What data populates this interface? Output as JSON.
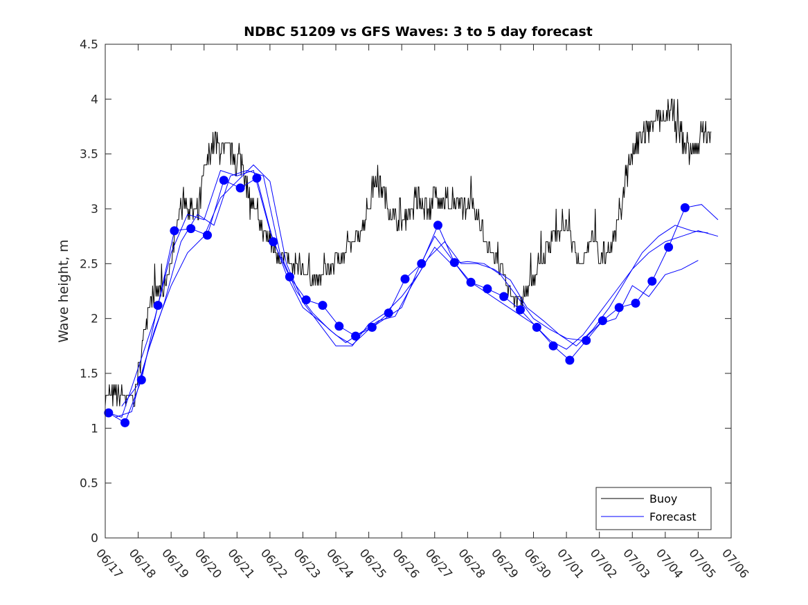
{
  "chart_data": {
    "type": "line",
    "title": "NDBC 51209 vs GFS Waves: 3 to 5 day forecast",
    "xlabel": "",
    "ylabel": "Wave height, m",
    "xlim": [
      "06/17",
      "07/06"
    ],
    "ylim": [
      0,
      4.5
    ],
    "x_tick_labels": [
      "06/17",
      "06/18",
      "06/19",
      "06/20",
      "06/21",
      "06/22",
      "06/23",
      "06/24",
      "06/25",
      "06/26",
      "06/27",
      "06/28",
      "06/29",
      "06/30",
      "07/01",
      "07/02",
      "07/03",
      "07/04",
      "07/05",
      "07/06"
    ],
    "y_tick_labels": [
      "0",
      "0.5",
      "1",
      "1.5",
      "2",
      "2.5",
      "3",
      "3.5",
      "4",
      "4.5"
    ],
    "grid": false,
    "legend": {
      "position": "bottom-right",
      "entries": [
        "Buoy",
        "Forecast"
      ]
    },
    "colors": {
      "buoy": "#000000",
      "forecast": "#0000ff",
      "marker": "#0000ff"
    },
    "buoy": {
      "name": "Buoy",
      "x_days": [
        0,
        0.5,
        0.7,
        0.9,
        1.0,
        1.2,
        1.4,
        1.6,
        1.8,
        2.0,
        2.2,
        2.4,
        2.6,
        2.8,
        3.0,
        3.2,
        3.4,
        3.6,
        3.8,
        4.0,
        4.2,
        4.4,
        4.6,
        4.8,
        5.0,
        5.2,
        5.4,
        5.6,
        5.8,
        6.0,
        6.2,
        6.4,
        6.6,
        6.8,
        7.0,
        7.3,
        7.6,
        7.9,
        8.2,
        8.5,
        8.8,
        9.0,
        9.2,
        9.4,
        9.6,
        9.8,
        10.0,
        10.2,
        10.4,
        10.6,
        10.8,
        11.0,
        11.2,
        11.4,
        11.6,
        11.8,
        12.0,
        12.2,
        12.4,
        12.6,
        12.8,
        13.0,
        13.2,
        13.4,
        13.6,
        13.8,
        14.0,
        14.2,
        14.4,
        14.6,
        14.8,
        15.0,
        15.2,
        15.4,
        15.6,
        15.8,
        16.0,
        16.2,
        16.4,
        16.6,
        16.8,
        17.0,
        17.2,
        17.4,
        17.6,
        17.8,
        18.0,
        18.2,
        18.4
      ],
      "values": [
        1.3,
        1.3,
        1.25,
        1.3,
        1.5,
        1.9,
        2.2,
        2.25,
        2.3,
        2.5,
        2.95,
        3.1,
        3.0,
        2.9,
        3.3,
        3.55,
        3.6,
        3.5,
        3.5,
        3.45,
        3.4,
        3.1,
        2.95,
        2.8,
        2.7,
        2.6,
        2.55,
        2.5,
        2.5,
        2.45,
        2.4,
        2.35,
        2.4,
        2.45,
        2.55,
        2.6,
        2.75,
        2.9,
        3.3,
        3.1,
        2.9,
        2.85,
        2.95,
        3.05,
        3.1,
        3.0,
        3.1,
        3.05,
        3.1,
        3.05,
        3.0,
        3.1,
        2.95,
        2.85,
        2.7,
        2.55,
        2.45,
        2.3,
        2.2,
        2.15,
        2.25,
        2.4,
        2.5,
        2.6,
        2.8,
        2.75,
        2.85,
        2.7,
        2.5,
        2.6,
        2.75,
        2.55,
        2.6,
        2.7,
        2.9,
        3.3,
        3.5,
        3.6,
        3.7,
        3.75,
        3.8,
        3.85,
        3.9,
        3.7,
        3.6,
        3.5,
        3.6,
        3.7,
        3.65
      ]
    },
    "forecast_markers": {
      "name": "Forecast",
      "x_days": [
        0.1,
        0.6,
        1.1,
        1.6,
        2.1,
        2.6,
        3.1,
        3.6,
        4.1,
        4.6,
        5.1,
        5.6,
        6.1,
        6.6,
        7.1,
        7.6,
        8.1,
        8.6,
        9.1,
        9.6,
        10.1,
        10.6,
        11.1,
        11.6,
        12.1,
        12.6,
        13.1,
        13.6,
        14.1,
        14.6,
        15.1,
        15.6,
        16.1,
        16.6,
        17.1,
        17.6
      ],
      "values": [
        1.14,
        1.05,
        1.44,
        2.12,
        2.8,
        2.82,
        2.76,
        3.26,
        3.19,
        3.28,
        2.7,
        2.38,
        2.17,
        2.12,
        1.93,
        1.84,
        1.92,
        2.05,
        2.36,
        2.5,
        2.85,
        2.51,
        2.33,
        2.27,
        2.2,
        2.08,
        1.92,
        1.75,
        1.62,
        1.8,
        1.98,
        2.1,
        2.14,
        2.34,
        2.65,
        3.01
      ]
    },
    "forecast_series": [
      {
        "x_days": [
          0.1,
          0.6,
          1.1,
          1.6,
          2.1,
          2.6,
          3.1,
          3.6,
          4.1,
          4.6,
          5.1,
          5.6,
          6.1,
          6.6,
          7.1,
          7.6,
          8.1,
          8.6,
          9.1,
          9.6,
          10.1,
          10.6,
          11.1,
          11.6,
          12.1,
          12.6,
          13.1,
          13.6,
          14.1,
          14.6,
          15.1,
          15.6,
          16.1,
          16.6,
          17.1,
          17.6,
          18.1,
          18.6
        ],
        "values": [
          1.14,
          1.05,
          1.44,
          2.12,
          2.8,
          2.82,
          2.76,
          3.26,
          3.19,
          3.28,
          2.7,
          2.38,
          2.17,
          2.12,
          1.93,
          1.84,
          1.92,
          2.05,
          2.36,
          2.5,
          2.85,
          2.51,
          2.33,
          2.27,
          2.2,
          2.08,
          1.92,
          1.75,
          1.62,
          1.8,
          1.98,
          2.1,
          2.14,
          2.34,
          2.65,
          3.01,
          3.04,
          2.9
        ]
      },
      {
        "x_days": [
          0.0,
          0.5,
          1.0,
          1.5,
          2.0,
          2.5,
          3.0,
          3.5,
          4.0,
          4.5,
          5.0,
          5.5,
          6.0,
          6.5,
          7.0,
          7.5,
          8.0,
          8.5,
          9.0,
          9.5,
          10.0,
          10.5,
          11.0,
          11.5,
          12.0,
          12.5,
          13.0,
          13.5,
          14.0,
          14.5,
          15.0,
          15.5,
          16.0,
          16.5,
          17.0,
          17.5,
          18.0,
          18.6
        ],
        "values": [
          1.15,
          1.1,
          1.55,
          2.0,
          2.6,
          2.95,
          2.9,
          3.35,
          3.3,
          3.35,
          2.8,
          2.4,
          2.1,
          1.98,
          1.85,
          1.76,
          1.9,
          2.0,
          2.1,
          2.45,
          2.75,
          2.55,
          2.35,
          2.25,
          2.15,
          2.05,
          1.95,
          1.8,
          1.72,
          1.85,
          2.05,
          2.25,
          2.45,
          2.6,
          2.7,
          2.75,
          2.8,
          2.75
        ]
      },
      {
        "x_days": [
          0.3,
          0.8,
          1.3,
          1.8,
          2.3,
          2.8,
          3.3,
          3.8,
          4.3,
          4.8,
          5.3,
          5.8,
          6.3,
          6.8,
          7.3,
          7.8,
          8.3,
          8.8,
          9.3,
          9.8,
          10.3,
          10.8,
          11.3,
          11.8,
          12.3,
          12.8,
          13.3,
          13.8,
          14.3,
          14.8,
          15.3,
          15.8,
          16.3,
          16.8,
          17.3,
          17.8,
          18.3
        ],
        "values": [
          1.1,
          1.15,
          1.7,
          2.15,
          2.7,
          2.95,
          2.85,
          3.3,
          3.35,
          3.3,
          2.6,
          2.25,
          2.05,
          1.9,
          1.78,
          1.88,
          1.98,
          2.02,
          2.3,
          2.55,
          2.7,
          2.5,
          2.5,
          2.45,
          2.35,
          2.1,
          1.98,
          1.85,
          1.75,
          1.9,
          2.1,
          2.35,
          2.6,
          2.75,
          2.85,
          2.8,
          2.78
        ]
      },
      {
        "x_days": [
          0.5,
          1.0,
          1.5,
          2.0,
          2.5,
          3.0,
          3.5,
          4.0,
          4.5,
          5.0,
          5.5,
          6.0,
          6.5,
          7.0,
          7.5,
          8.0,
          8.5,
          9.0,
          9.5,
          10.0,
          10.5,
          11.0,
          11.5,
          12.0,
          12.5,
          13.0,
          13.5,
          14.0,
          14.5,
          15.0,
          15.5,
          16.0,
          16.5,
          17.0,
          17.5,
          18.0
        ],
        "values": [
          1.2,
          1.4,
          1.9,
          2.3,
          2.6,
          2.75,
          3.1,
          3.25,
          3.4,
          3.25,
          2.5,
          2.15,
          1.95,
          1.75,
          1.75,
          1.95,
          2.05,
          2.2,
          2.4,
          2.65,
          2.5,
          2.52,
          2.5,
          2.4,
          2.2,
          2.0,
          1.9,
          1.82,
          1.8,
          1.95,
          2.0,
          2.3,
          2.2,
          2.4,
          2.45,
          2.53
        ]
      }
    ]
  }
}
